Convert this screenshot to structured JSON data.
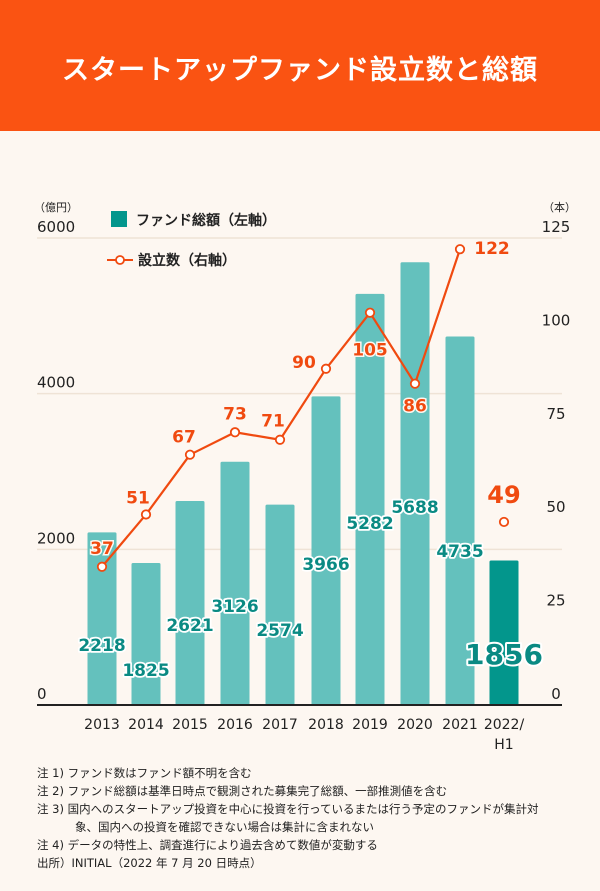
{
  "header": {
    "title": "スタートアップファンド設立数と総額"
  },
  "colors": {
    "header_bg": "#fa5312",
    "background": "#fdf7f1",
    "bar": "#64c1bd",
    "bar_highlight": "#03968c",
    "bar_label": "#0a8a83",
    "line": "#f04a10",
    "grid": "#efe3d6",
    "axis": "#222222"
  },
  "chart_data": {
    "type": "bar+line",
    "title": "スタートアップファンド設立数と総額",
    "categories": [
      "2013",
      "2014",
      "2015",
      "2016",
      "2017",
      "2018",
      "2019",
      "2020",
      "2021",
      "2022/\nH1"
    ],
    "category_lines": [
      [
        "2013"
      ],
      [
        "2014"
      ],
      [
        "2015"
      ],
      [
        "2016"
      ],
      [
        "2017"
      ],
      [
        "2018"
      ],
      [
        "2019"
      ],
      [
        "2020"
      ],
      [
        "2021"
      ],
      [
        "2022/",
        "H1"
      ]
    ],
    "series": [
      {
        "name": "ファンド総額（左軸）",
        "type": "bar",
        "axis": "left",
        "values": [
          2218,
          1825,
          2621,
          3126,
          2574,
          3966,
          5282,
          5688,
          4735,
          1856
        ],
        "highlight_index": 9
      },
      {
        "name": "設立数（右軸）",
        "type": "line",
        "axis": "right",
        "values": [
          37,
          51,
          67,
          73,
          71,
          90,
          105,
          86,
          122,
          49
        ],
        "connected_until_index": 8
      }
    ],
    "left_axis": {
      "unit": "（億円）",
      "ticks": [
        0,
        2000,
        4000,
        6000
      ],
      "range": [
        0,
        6000
      ]
    },
    "right_axis": {
      "unit": "（本）",
      "ticks": [
        0,
        25,
        50,
        75,
        100,
        125
      ],
      "range": [
        0,
        125
      ]
    },
    "legend": {
      "position": "top-left",
      "items": [
        {
          "label": "ファンド総額（左軸）",
          "marker": "square"
        },
        {
          "label": "設立数（右軸）",
          "marker": "line-circle"
        }
      ]
    },
    "grid": true
  },
  "notes": [
    "注 1) ファンド数はファンド額不明を含む",
    "注 2) ファンド総額は基準日時点で観測された募集完了総額、一部推測値を含む",
    "注 3) 国内へのスタートアップ投資を中心に投資を行っているまたは行う予定のファンドが集計対",
    "象、国内への投資を確認できない場合は集計に含まれない",
    "注 4) データの特性上、調査進行により過去含めて数値が変動する",
    "出所）INITIAL（2022 年 7 月 20 日時点）"
  ]
}
